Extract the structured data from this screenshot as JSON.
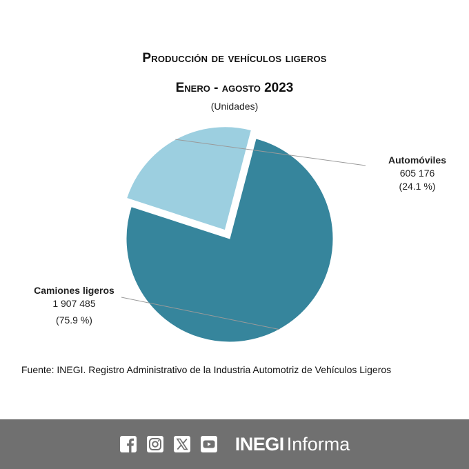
{
  "chart_data": {
    "type": "pie",
    "title": "Producción de vehículos ligeros",
    "subtitle": "Enero - agosto 2023",
    "units": "(Unidades)",
    "slices": [
      {
        "label": "Automóviles",
        "value_label": "605 176",
        "percent_label": "(24.1 %)",
        "value": 605176,
        "percent": 24.1,
        "color": "#9ccfe0",
        "exploded": true
      },
      {
        "label": "Camiones ligeros",
        "value_label": "1 907 485",
        "percent_label": "(75.9 %)",
        "value": 1907485,
        "percent": 75.9,
        "color": "#36859c",
        "exploded": false
      }
    ]
  },
  "source": "Fuente: INEGI. Registro Administrativo de la Industria Automotriz de Vehículos Ligeros",
  "footer": {
    "brand_bold": "INEGI",
    "brand_light": "Informa",
    "icons": [
      "facebook-icon",
      "instagram-icon",
      "x-icon",
      "youtube-icon"
    ],
    "background": "#707070"
  }
}
